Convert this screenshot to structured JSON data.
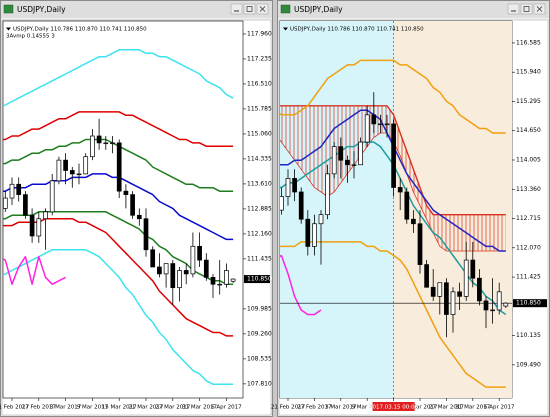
{
  "current_price": {
    "value": 110.85,
    "label": "110.850"
  },
  "x_labels": [
    "21 Feb 2017",
    "27 Feb 2017",
    "3 Mar 2017",
    "9 Mar 2017",
    "15 Mar 2017",
    "21 Mar 2017",
    "27 Mar 2017",
    "31 Mar 2017",
    "6 Apr 2017"
  ],
  "candles": {
    "open": [
      112.9,
      112.9,
      113.2,
      113.6,
      113.3,
      112.7,
      112.1,
      112.6,
      112.8,
      113.7,
      114.3,
      114.0,
      113.9,
      113.9,
      114.4,
      115.0,
      114.8,
      114.8,
      114.8,
      113.4,
      113.3,
      112.7,
      112.6,
      111.7,
      111.2,
      111.0,
      111.3,
      110.6,
      111.1,
      111.0,
      111.8,
      111.4,
      110.9,
      110.7,
      110.7,
      110.786
    ],
    "high": [
      113.3,
      113.4,
      113.8,
      113.8,
      113.4,
      112.9,
      112.8,
      112.9,
      113.9,
      114.4,
      114.5,
      114.1,
      114.2,
      114.5,
      115.2,
      115.5,
      115.0,
      115.0,
      114.9,
      113.6,
      113.4,
      112.9,
      112.9,
      111.8,
      111.6,
      111.3,
      111.4,
      111.2,
      111.3,
      112.2,
      112.2,
      111.6,
      111.0,
      111.4,
      111.3,
      110.87
    ],
    "low": [
      112.6,
      112.8,
      113.0,
      113.1,
      112.6,
      111.9,
      111.9,
      111.7,
      112.7,
      113.6,
      113.6,
      113.5,
      113.6,
      113.9,
      114.3,
      114.6,
      114.6,
      114.5,
      113.2,
      112.9,
      112.6,
      112.4,
      111.5,
      111.2,
      110.9,
      110.6,
      110.1,
      110.2,
      110.7,
      110.9,
      111.2,
      110.8,
      110.3,
      110.4,
      110.6,
      110.741
    ],
    "close": [
      112.9,
      113.2,
      113.6,
      113.3,
      112.7,
      112.1,
      112.6,
      112.8,
      113.7,
      114.3,
      114.0,
      113.9,
      113.9,
      114.4,
      115.0,
      114.8,
      114.8,
      114.8,
      113.4,
      113.3,
      112.7,
      112.6,
      111.7,
      111.2,
      111.0,
      111.3,
      110.6,
      111.1,
      111.0,
      111.8,
      111.4,
      110.9,
      110.7,
      110.7,
      111.1,
      110.85
    ]
  },
  "windows": [
    {
      "title": "USDJPY,Daily",
      "info": "USDJPY,Daily 110.786 110.870 110.741 110.850",
      "indicator": "3Avmp 0.14555 3",
      "price_line": false,
      "ylim": [
        107.4,
        118.22
      ],
      "yticks": [
        {
          "value": 117.96,
          "label": "117.960"
        },
        {
          "value": 117.235,
          "label": "117.235"
        },
        {
          "value": 116.51,
          "label": "116.510"
        },
        {
          "value": 115.785,
          "label": "115.785"
        },
        {
          "value": 115.06,
          "label": "115.060"
        },
        {
          "value": 114.335,
          "label": "114.335"
        },
        {
          "value": 113.61,
          "label": "113.610"
        },
        {
          "value": 112.885,
          "label": "112.885"
        },
        {
          "value": 112.16,
          "label": "112.160"
        },
        {
          "value": 111.435,
          "label": "111.435"
        },
        {
          "value": 109.985,
          "label": "109.985"
        },
        {
          "value": 109.26,
          "label": "109.260"
        },
        {
          "value": 108.535,
          "label": "108.535"
        },
        {
          "value": 107.81,
          "label": "107.810"
        }
      ],
      "lines": [
        {
          "color": "#3de3ef",
          "values": [
            115.8,
            115.9,
            116.0,
            116.1,
            116.2,
            116.3,
            116.4,
            116.5,
            116.6,
            116.7,
            116.8,
            116.9,
            117.0,
            117.1,
            117.2,
            117.3,
            117.3,
            117.4,
            117.5,
            117.5,
            117.5,
            117.5,
            117.4,
            117.4,
            117.3,
            117.3,
            117.2,
            117.1,
            117.0,
            116.9,
            116.8,
            116.6,
            116.5,
            116.4,
            116.2,
            116.1
          ]
        },
        {
          "color": "#3de3ef",
          "values": [
            110.9,
            111.0,
            111.1,
            111.2,
            111.3,
            111.4,
            111.5,
            111.6,
            111.7,
            111.7,
            111.7,
            111.7,
            111.7,
            111.7,
            111.6,
            111.5,
            111.3,
            111.1,
            110.9,
            110.6,
            110.4,
            110.1,
            109.8,
            109.6,
            109.3,
            109.1,
            108.8,
            108.6,
            108.4,
            108.2,
            108.1,
            107.9,
            107.8,
            107.8,
            107.8,
            107.8
          ]
        },
        {
          "color": "#dd0000",
          "values": [
            114.9,
            114.9,
            115.0,
            115.0,
            115.1,
            115.2,
            115.2,
            115.3,
            115.4,
            115.5,
            115.5,
            115.6,
            115.7,
            115.7,
            115.7,
            115.7,
            115.7,
            115.7,
            115.7,
            115.6,
            115.6,
            115.5,
            115.4,
            115.3,
            115.2,
            115.1,
            115.0,
            114.9,
            114.9,
            114.8,
            114.8,
            114.7,
            114.7,
            114.7,
            114.7,
            114.7
          ]
        },
        {
          "color": "#dd0000",
          "values": [
            112.4,
            112.4,
            112.4,
            112.5,
            112.5,
            112.5,
            112.5,
            112.6,
            112.6,
            112.6,
            112.6,
            112.6,
            112.5,
            112.5,
            112.4,
            112.3,
            112.2,
            112.0,
            111.8,
            111.6,
            111.4,
            111.2,
            111.0,
            110.8,
            110.5,
            110.3,
            110.1,
            109.9,
            109.7,
            109.6,
            109.5,
            109.4,
            109.3,
            109.3,
            109.2,
            109.2
          ]
        },
        {
          "color": "#1e7d1e",
          "values": [
            114.2,
            114.2,
            114.3,
            114.3,
            114.4,
            114.5,
            114.5,
            114.6,
            114.6,
            114.7,
            114.7,
            114.8,
            114.8,
            114.9,
            114.9,
            114.9,
            114.9,
            114.8,
            114.7,
            114.6,
            114.5,
            114.4,
            114.3,
            114.1,
            114.0,
            113.9,
            113.8,
            113.7,
            113.6,
            113.6,
            113.5,
            113.5,
            113.5,
            113.4,
            113.4,
            113.4
          ]
        },
        {
          "color": "#1e7d1e",
          "values": [
            112.6,
            112.6,
            112.7,
            112.7,
            112.7,
            112.7,
            112.8,
            112.8,
            112.8,
            112.8,
            112.8,
            112.8,
            112.8,
            112.8,
            112.8,
            112.8,
            112.8,
            112.7,
            112.6,
            112.5,
            112.4,
            112.3,
            112.1,
            112.0,
            111.8,
            111.7,
            111.5,
            111.4,
            111.3,
            111.1,
            111.0,
            110.9,
            110.8,
            110.8,
            110.7,
            110.7
          ]
        },
        {
          "color": "#0a0ad0",
          "values": [
            113.4,
            113.4,
            113.5,
            113.5,
            113.5,
            113.6,
            113.6,
            113.6,
            113.7,
            113.7,
            113.7,
            113.8,
            113.8,
            113.8,
            113.9,
            113.9,
            113.9,
            113.8,
            113.8,
            113.7,
            113.6,
            113.5,
            113.4,
            113.3,
            113.1,
            113.0,
            112.9,
            112.7,
            112.6,
            112.5,
            112.4,
            112.3,
            112.2,
            112.1,
            112.0,
            112.0
          ]
        },
        {
          "color": "#ff22e0",
          "values": [
            111.5,
            111.4,
            110.7,
            111.2,
            111.5,
            110.7,
            111.5,
            110.9,
            110.7,
            110.8,
            110.9,
            null,
            null,
            null,
            null,
            null,
            null,
            null,
            null,
            null,
            null,
            null,
            null,
            null,
            null,
            null,
            null,
            null,
            null,
            null,
            null,
            null,
            null,
            null,
            null,
            null
          ]
        }
      ]
    },
    {
      "title": "USDJPY,Daily",
      "info": "USDJPY,Daily 110.786 110.870 110.741 110.850",
      "price_line": true,
      "marker_label": "2017.03.15 00:00",
      "ylim": [
        108.76,
        116.98
      ],
      "yticks": [
        {
          "value": 116.585,
          "label": "116.585"
        },
        {
          "value": 115.94,
          "label": "115.940"
        },
        {
          "value": 115.295,
          "label": "115.295"
        },
        {
          "value": 114.65,
          "label": "114.650"
        },
        {
          "value": 114.005,
          "label": "114.005"
        },
        {
          "value": 113.36,
          "label": "113.360"
        },
        {
          "value": 112.715,
          "label": "112.715"
        },
        {
          "value": 112.07,
          "label": "112.070"
        },
        {
          "value": 111.425,
          "label": "111.425"
        },
        {
          "value": 110.135,
          "label": "110.135"
        },
        {
          "value": 109.49,
          "label": "109.490"
        }
      ],
      "cloud": {
        "color": "#d8321e",
        "span_a": [
          115.2,
          115.2,
          115.2,
          115.2,
          115.2,
          115.2,
          115.2,
          115.2,
          115.2,
          115.2,
          115.2,
          115.2,
          115.2,
          115.2,
          115.2,
          115.2,
          115.2,
          115.2,
          115.0,
          114.6,
          114.2,
          113.8,
          113.4,
          113.0,
          112.8,
          112.8,
          112.8,
          112.8,
          112.8,
          112.8,
          112.8,
          112.8,
          112.8,
          112.8,
          112.8,
          112.8
        ],
        "span_b": [
          114.6,
          114.4,
          114.2,
          114.0,
          113.8,
          113.6,
          113.4,
          113.3,
          113.2,
          113.3,
          113.5,
          113.7,
          113.9,
          114.1,
          114.3,
          114.5,
          114.6,
          114.6,
          114.4,
          114.1,
          113.7,
          113.3,
          113.0,
          112.7,
          112.4,
          112.1,
          112.0,
          112.0,
          112.0,
          112.0,
          112.0,
          112.0,
          112.0,
          112.0,
          112.0,
          112.0
        ]
      },
      "lines": [
        {
          "color": "#f0a010",
          "values": [
            115.1,
            115.0,
            115.0,
            115.0,
            115.1,
            115.2,
            115.4,
            115.6,
            115.8,
            115.9,
            116.0,
            116.1,
            116.1,
            116.2,
            116.2,
            116.2,
            116.2,
            116.2,
            116.2,
            116.1,
            116.1,
            116.0,
            115.9,
            115.8,
            115.6,
            115.5,
            115.3,
            115.2,
            115.0,
            114.9,
            114.8,
            114.7,
            114.7,
            114.6,
            114.6,
            114.6
          ]
        },
        {
          "color": "#f0a010",
          "values": [
            112.1,
            112.1,
            112.1,
            112.1,
            112.2,
            112.2,
            112.2,
            112.2,
            112.2,
            112.2,
            112.2,
            112.2,
            112.2,
            112.2,
            112.1,
            112.1,
            112.0,
            112.0,
            111.9,
            111.8,
            111.6,
            111.3,
            111.0,
            110.7,
            110.4,
            110.1,
            109.9,
            109.7,
            109.5,
            109.3,
            109.2,
            109.1,
            109.0,
            109.0,
            109.0,
            109.0
          ]
        },
        {
          "color": "#1f9c9c",
          "values": [
            113.4,
            113.4,
            113.5,
            113.5,
            113.6,
            113.7,
            113.8,
            113.9,
            114.0,
            114.1,
            114.2,
            114.3,
            114.3,
            114.4,
            114.4,
            114.4,
            114.3,
            114.1,
            113.9,
            113.6,
            113.3,
            113.0,
            112.8,
            112.6,
            112.4,
            112.3,
            112.1,
            111.9,
            111.7,
            111.5,
            111.3,
            111.2,
            111.0,
            110.9,
            110.7,
            110.6
          ]
        },
        {
          "color": "#2424c0",
          "values": [
            113.9,
            113.9,
            113.9,
            114.0,
            114.0,
            114.1,
            114.2,
            114.3,
            114.5,
            114.7,
            114.8,
            114.9,
            115.0,
            115.1,
            115.1,
            115.0,
            114.9,
            114.6,
            114.3,
            114.0,
            113.7,
            113.5,
            113.3,
            113.1,
            112.9,
            112.8,
            112.7,
            112.6,
            112.5,
            112.4,
            112.3,
            112.2,
            112.1,
            112.1,
            112.0,
            112.0
          ]
        },
        {
          "color": "#ff22e0",
          "values": [
            111.8,
            111.9,
            111.5,
            111.0,
            110.7,
            110.6,
            110.6,
            110.7,
            null,
            null,
            null,
            null,
            null,
            null,
            null,
            null,
            null,
            null,
            null,
            null,
            null,
            null,
            null,
            null,
            null,
            null,
            null,
            null,
            null,
            null,
            null,
            null,
            null,
            null,
            null,
            null
          ]
        }
      ]
    }
  ]
}
